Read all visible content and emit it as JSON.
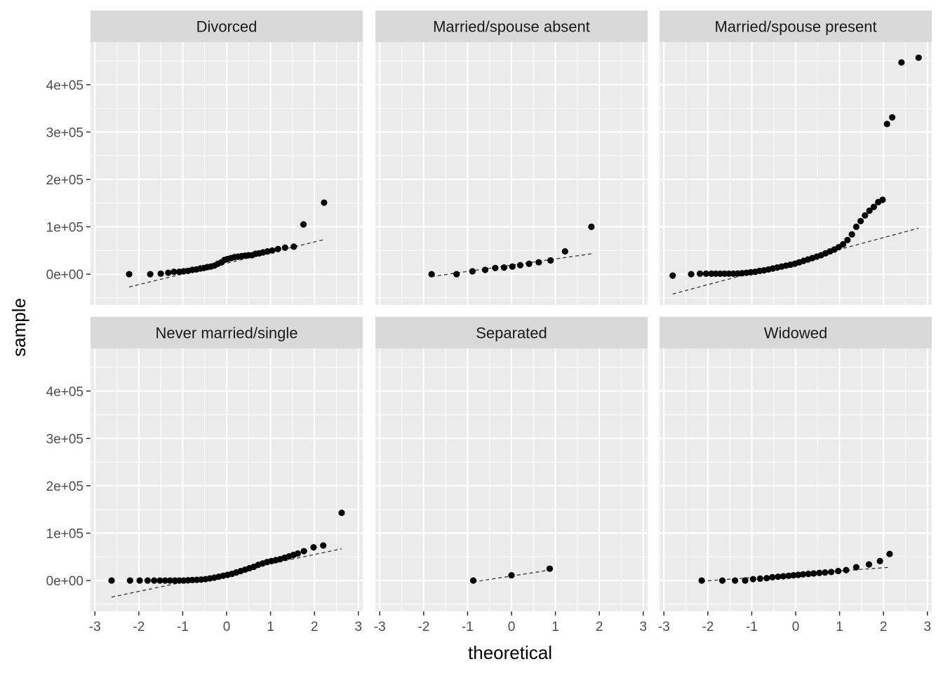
{
  "chart_data": {
    "type": "scatter",
    "kind": "qq-plot facets",
    "xlabel": "theoretical",
    "ylabel": "sample",
    "xlim": [
      -3.1,
      3.1
    ],
    "ylim": [
      -65000,
      490000
    ],
    "x_ticks": [
      -3,
      -2,
      -1,
      0,
      1,
      2,
      3
    ],
    "x_tick_labels": [
      "-3",
      "-2",
      "-1",
      "0",
      "1",
      "2",
      "3"
    ],
    "y_ticks": [
      0,
      100000,
      200000,
      300000,
      400000
    ],
    "y_tick_labels": [
      "0e+00",
      "1e+05",
      "2e+05",
      "3e+05",
      "4e+05"
    ],
    "grid": true,
    "colors": {
      "panel": "#ebebeb",
      "strip": "#d9d9d9",
      "grid": "#ffffff",
      "points": "#000000",
      "line": "#333333"
    },
    "panels": [
      {
        "label": "Divorced",
        "line": [
          [
            -2.22,
            -27000
          ],
          [
            2.22,
            73000
          ]
        ],
        "points": [
          [
            -2.22,
            0
          ],
          [
            -1.74,
            0
          ],
          [
            -1.5,
            1000
          ],
          [
            -1.33,
            3000
          ],
          [
            -1.2,
            5000
          ],
          [
            -1.08,
            5000
          ],
          [
            -0.98,
            6000
          ],
          [
            -0.88,
            7000
          ],
          [
            -0.78,
            9000
          ],
          [
            -0.69,
            10000
          ],
          [
            -0.6,
            12000
          ],
          [
            -0.52,
            13000
          ],
          [
            -0.44,
            15000
          ],
          [
            -0.36,
            16000
          ],
          [
            -0.28,
            18000
          ],
          [
            -0.2,
            22000
          ],
          [
            -0.12,
            25000
          ],
          [
            -0.05,
            30000
          ],
          [
            0.02,
            32000
          ],
          [
            0.1,
            34000
          ],
          [
            0.18,
            36000
          ],
          [
            0.26,
            37000
          ],
          [
            0.34,
            38000
          ],
          [
            0.42,
            39000
          ],
          [
            0.5,
            40000
          ],
          [
            0.58,
            40000
          ],
          [
            0.66,
            43000
          ],
          [
            0.74,
            44000
          ],
          [
            0.83,
            46000
          ],
          [
            0.93,
            48000
          ],
          [
            1.04,
            50000
          ],
          [
            1.17,
            53000
          ],
          [
            1.33,
            56000
          ],
          [
            1.53,
            58000
          ],
          [
            1.75,
            105000
          ],
          [
            2.22,
            151000
          ]
        ]
      },
      {
        "label": "Married/spouse absent",
        "line": [
          [
            -1.82,
            -5000
          ],
          [
            1.82,
            43000
          ]
        ],
        "points": [
          [
            -1.82,
            0
          ],
          [
            -1.25,
            0
          ],
          [
            -0.89,
            6000
          ],
          [
            -0.6,
            9000
          ],
          [
            -0.37,
            13000
          ],
          [
            -0.17,
            14000
          ],
          [
            0.02,
            16000
          ],
          [
            0.2,
            19000
          ],
          [
            0.4,
            22000
          ],
          [
            0.62,
            25000
          ],
          [
            0.89,
            29000
          ],
          [
            1.22,
            48000
          ],
          [
            1.82,
            100000
          ]
        ]
      },
      {
        "label": "Married/spouse present",
        "line": [
          [
            -2.8,
            -42000
          ],
          [
            2.8,
            97000
          ]
        ],
        "points": [
          [
            -2.8,
            -3000
          ],
          [
            -2.38,
            0
          ],
          [
            -2.18,
            1000
          ],
          [
            -2.04,
            1000
          ],
          [
            -1.92,
            1000
          ],
          [
            -1.82,
            1000
          ],
          [
            -1.72,
            1000
          ],
          [
            -1.62,
            1000
          ],
          [
            -1.52,
            1000
          ],
          [
            -1.42,
            1000
          ],
          [
            -1.32,
            1500
          ],
          [
            -1.22,
            2000
          ],
          [
            -1.12,
            3000
          ],
          [
            -1.02,
            4000
          ],
          [
            -0.92,
            5000
          ],
          [
            -0.82,
            7000
          ],
          [
            -0.72,
            8000
          ],
          [
            -0.62,
            10000
          ],
          [
            -0.52,
            12000
          ],
          [
            -0.42,
            14000
          ],
          [
            -0.32,
            16000
          ],
          [
            -0.22,
            18000
          ],
          [
            -0.12,
            20000
          ],
          [
            -0.02,
            22000
          ],
          [
            0.08,
            25000
          ],
          [
            0.18,
            28000
          ],
          [
            0.28,
            31000
          ],
          [
            0.38,
            34000
          ],
          [
            0.48,
            37000
          ],
          [
            0.58,
            40000
          ],
          [
            0.68,
            44000
          ],
          [
            0.78,
            48000
          ],
          [
            0.88,
            52000
          ],
          [
            0.98,
            57000
          ],
          [
            1.08,
            63000
          ],
          [
            1.18,
            72000
          ],
          [
            1.28,
            84000
          ],
          [
            1.38,
            100000
          ],
          [
            1.48,
            112000
          ],
          [
            1.58,
            124000
          ],
          [
            1.68,
            134000
          ],
          [
            1.78,
            142000
          ],
          [
            1.88,
            152000
          ],
          [
            1.98,
            157000
          ],
          [
            2.08,
            317000
          ],
          [
            2.2,
            331000
          ],
          [
            2.41,
            447000
          ],
          [
            2.8,
            457000
          ]
        ]
      },
      {
        "label": "Never married/single",
        "line": [
          [
            -2.62,
            -35000
          ],
          [
            2.62,
            67000
          ]
        ],
        "points": [
          [
            -2.62,
            0
          ],
          [
            -2.2,
            0
          ],
          [
            -1.98,
            0
          ],
          [
            -1.8,
            0
          ],
          [
            -1.65,
            0
          ],
          [
            -1.52,
            0
          ],
          [
            -1.4,
            0
          ],
          [
            -1.29,
            0
          ],
          [
            -1.18,
            0
          ],
          [
            -1.08,
            0
          ],
          [
            -0.98,
            0
          ],
          [
            -0.88,
            500
          ],
          [
            -0.78,
            1000
          ],
          [
            -0.68,
            1500
          ],
          [
            -0.58,
            2000
          ],
          [
            -0.48,
            3000
          ],
          [
            -0.38,
            4500
          ],
          [
            -0.28,
            6000
          ],
          [
            -0.18,
            8000
          ],
          [
            -0.08,
            10000
          ],
          [
            0.02,
            12000
          ],
          [
            0.12,
            14000
          ],
          [
            0.22,
            17000
          ],
          [
            0.32,
            20000
          ],
          [
            0.42,
            23000
          ],
          [
            0.52,
            26000
          ],
          [
            0.62,
            29000
          ],
          [
            0.72,
            33000
          ],
          [
            0.82,
            36000
          ],
          [
            0.92,
            39000
          ],
          [
            1.02,
            41000
          ],
          [
            1.12,
            43000
          ],
          [
            1.22,
            45000
          ],
          [
            1.32,
            48000
          ],
          [
            1.42,
            51000
          ],
          [
            1.52,
            54000
          ],
          [
            1.62,
            57000
          ],
          [
            1.76,
            62000
          ],
          [
            1.98,
            70000
          ],
          [
            2.2,
            74000
          ],
          [
            2.62,
            143000
          ]
        ]
      },
      {
        "label": "Separated",
        "line": [
          [
            -0.87,
            -3000
          ],
          [
            0.87,
            22000
          ]
        ],
        "points": [
          [
            -0.87,
            0
          ],
          [
            0.0,
            11000
          ],
          [
            0.87,
            25000
          ]
        ]
      },
      {
        "label": "Widowed",
        "line": [
          [
            -2.14,
            -1500
          ],
          [
            2.14,
            28000
          ]
        ],
        "points": [
          [
            -2.14,
            0
          ],
          [
            -1.67,
            0
          ],
          [
            -1.38,
            0
          ],
          [
            -1.15,
            0
          ],
          [
            -0.97,
            3000
          ],
          [
            -0.81,
            4000
          ],
          [
            -0.66,
            5000
          ],
          [
            -0.53,
            7000
          ],
          [
            -0.4,
            8000
          ],
          [
            -0.28,
            9000
          ],
          [
            -0.16,
            10000
          ],
          [
            -0.05,
            11000
          ],
          [
            0.06,
            12000
          ],
          [
            0.17,
            13000
          ],
          [
            0.29,
            14000
          ],
          [
            0.41,
            15000
          ],
          [
            0.54,
            16000
          ],
          [
            0.67,
            17000
          ],
          [
            0.81,
            18000
          ],
          [
            0.97,
            20000
          ],
          [
            1.15,
            22000
          ],
          [
            1.38,
            28000
          ],
          [
            1.67,
            34000
          ],
          [
            1.92,
            41000
          ],
          [
            2.14,
            56000
          ]
        ]
      }
    ]
  }
}
